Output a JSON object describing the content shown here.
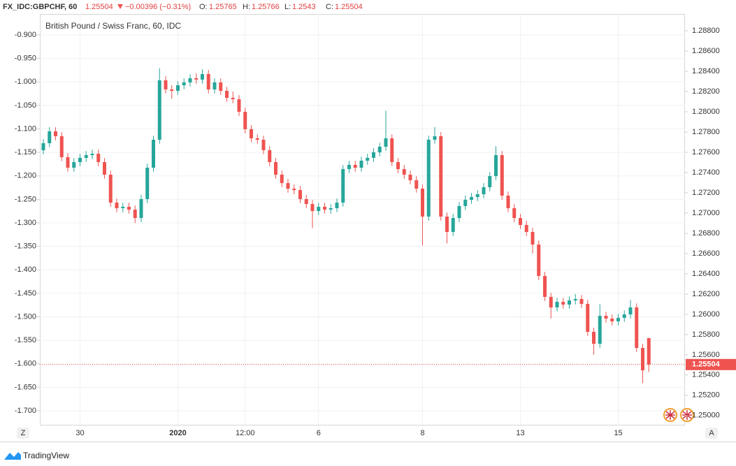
{
  "header": {
    "symbol": "FX_IDC:GBPCHF, 60",
    "change": "−0.00396 (−0.31%)",
    "ohlc_labels": [
      "O:",
      "H:",
      "L:",
      "C:"
    ]
  },
  "footer": {
    "brand": "TradingView",
    "left_button": "Z",
    "right_button": "A"
  },
  "chart_data": {
    "type": "candlestick",
    "title": "British Pound / Swiss Franc, 60, IDC",
    "axis": "y2",
    "up_color": "#26a69a",
    "down_color": "#ef5350",
    "grid": true,
    "categories": [
      null,
      null,
      null,
      null,
      null,
      null,
      "30",
      null,
      null,
      null,
      null,
      null,
      null,
      null,
      null,
      null,
      null,
      null,
      null,
      null,
      null,
      null,
      "2020",
      null,
      null,
      null,
      null,
      null,
      null,
      null,
      null,
      null,
      null,
      "12:00",
      null,
      null,
      null,
      null,
      null,
      null,
      null,
      null,
      null,
      null,
      null,
      "6",
      null,
      null,
      null,
      null,
      null,
      null,
      null,
      null,
      null,
      null,
      null,
      null,
      null,
      null,
      null,
      null,
      "8",
      null,
      null,
      null,
      null,
      null,
      null,
      null,
      null,
      null,
      null,
      null,
      null,
      null,
      null,
      null,
      "13",
      null,
      null,
      null,
      null,
      null,
      null,
      null,
      null,
      null,
      null,
      null,
      null,
      null,
      null,
      null,
      "15",
      null,
      null,
      null,
      null,
      null
    ],
    "open": [
      1.2762,
      1.2769,
      1.27807,
      1.27759,
      1.27552,
      1.27448,
      1.27503,
      1.27545,
      1.27572,
      1.27586,
      1.27503,
      1.27379,
      1.27103,
      1.27048,
      1.27062,
      1.27034,
      1.26951,
      1.27138,
      1.27448,
      1.27724,
      1.28311,
      1.28221,
      1.28207,
      1.28262,
      1.2829,
      1.28331,
      1.28318,
      1.28373,
      1.28221,
      1.2829,
      1.28207,
      1.28138,
      1.28124,
      1.28,
      1.27828,
      1.27738,
      1.27724,
      1.27621,
      1.27503,
      1.27379,
      1.27296,
      1.27241,
      1.27227,
      1.27138,
      1.27089,
      1.2702,
      1.27062,
      1.27034,
      1.27048,
      1.27103,
      1.27434,
      1.27476,
      1.27448,
      1.27517,
      1.27545,
      1.276,
      1.27655,
      1.27738,
      1.27503,
      1.27434,
      1.27379,
      1.27324,
      1.27241,
      1.26965,
      1.27724,
      1.27759,
      1.26965,
      1.26813,
      1.26951,
      1.27069,
      1.27131,
      1.27158,
      1.27186,
      1.27255,
      1.27365,
      1.27572,
      1.27172,
      1.27048,
      1.26951,
      1.26882,
      1.26813,
      1.26689,
      1.26379,
      1.26172,
      1.26068,
      1.26123,
      1.26096,
      1.26137,
      1.26151,
      1.26103,
      1.25827,
      1.25709,
      1.25985,
      1.25958,
      1.2593,
      1.25965,
      1.25999,
      1.26068,
      1.25668,
      1.25765
    ],
    "high": [
      1.2773,
      1.27847,
      1.27847,
      1.27799,
      1.27592,
      1.27543,
      1.27585,
      1.27612,
      1.27626,
      1.27626,
      1.27543,
      1.27419,
      1.27143,
      1.27102,
      1.27102,
      1.27074,
      1.27178,
      1.27488,
      1.27764,
      1.2843,
      1.28351,
      1.28261,
      1.28302,
      1.2833,
      1.28371,
      1.2838,
      1.2842,
      1.28413,
      1.2833,
      1.2833,
      1.28247,
      1.282,
      1.28164,
      1.2804,
      1.27868,
      1.27778,
      1.27764,
      1.27661,
      1.27543,
      1.27419,
      1.27336,
      1.27281,
      1.27267,
      1.27178,
      1.27129,
      1.27102,
      1.27102,
      1.27088,
      1.27143,
      1.27474,
      1.27516,
      1.27516,
      1.27557,
      1.27585,
      1.2764,
      1.27695,
      1.2801,
      1.27778,
      1.27543,
      1.27474,
      1.27419,
      1.27364,
      1.27281,
      1.27764,
      1.2785,
      1.27799,
      1.27005,
      1.26991,
      1.27109,
      1.27171,
      1.27198,
      1.27226,
      1.27295,
      1.27405,
      1.2766,
      1.27612,
      1.27212,
      1.27088,
      1.26991,
      1.26922,
      1.26853,
      1.26729,
      1.26419,
      1.26212,
      1.26163,
      1.26163,
      1.26177,
      1.262,
      1.26191,
      1.26143,
      1.25867,
      1.261,
      1.26025,
      1.25998,
      1.26005,
      1.26039,
      1.2614,
      1.26108,
      1.25708,
      1.25766
    ],
    "low": [
      1.2758,
      1.2765,
      1.27719,
      1.27512,
      1.27408,
      1.27408,
      1.27463,
      1.27505,
      1.27532,
      1.27463,
      1.27339,
      1.27063,
      1.27008,
      1.27008,
      1.26994,
      1.269,
      1.26911,
      1.27098,
      1.27408,
      1.27684,
      1.28181,
      1.2813,
      1.28167,
      1.28222,
      1.2825,
      1.28278,
      1.28278,
      1.28181,
      1.28181,
      1.28167,
      1.28098,
      1.28084,
      1.2796,
      1.27788,
      1.27698,
      1.27684,
      1.27581,
      1.27463,
      1.27339,
      1.27256,
      1.27201,
      1.27187,
      1.27098,
      1.27049,
      1.2685,
      1.2698,
      1.26994,
      1.26994,
      1.27008,
      1.27063,
      1.27394,
      1.27408,
      1.27408,
      1.27477,
      1.27505,
      1.2756,
      1.27615,
      1.27463,
      1.27394,
      1.27339,
      1.27284,
      1.27201,
      1.2668,
      1.26925,
      1.27684,
      1.26925,
      1.267,
      1.26773,
      1.26911,
      1.27029,
      1.27091,
      1.27118,
      1.27146,
      1.27215,
      1.27325,
      1.27132,
      1.27008,
      1.26911,
      1.26842,
      1.26773,
      1.266,
      1.26339,
      1.26132,
      1.2596,
      1.26028,
      1.26056,
      1.26056,
      1.26097,
      1.26063,
      1.25787,
      1.256,
      1.25669,
      1.25918,
      1.2589,
      1.2589,
      1.25925,
      1.25959,
      1.25628,
      1.2532,
      1.2543
    ],
    "close": [
      1.2769,
      1.27807,
      1.27759,
      1.27552,
      1.27448,
      1.27503,
      1.27545,
      1.27572,
      1.27586,
      1.27503,
      1.27379,
      1.27103,
      1.27048,
      1.27062,
      1.27034,
      1.26951,
      1.27138,
      1.27448,
      1.27724,
      1.28311,
      1.28221,
      1.28207,
      1.28262,
      1.2829,
      1.28331,
      1.28318,
      1.28373,
      1.28221,
      1.2829,
      1.28207,
      1.28138,
      1.28124,
      1.28,
      1.27828,
      1.27738,
      1.27724,
      1.27621,
      1.27503,
      1.27379,
      1.27296,
      1.27241,
      1.27227,
      1.27138,
      1.27089,
      1.2702,
      1.27062,
      1.27034,
      1.27048,
      1.27103,
      1.27434,
      1.27476,
      1.27448,
      1.27517,
      1.27545,
      1.276,
      1.27655,
      1.27738,
      1.27503,
      1.27434,
      1.27379,
      1.27324,
      1.27241,
      1.26965,
      1.27724,
      1.27759,
      1.26965,
      1.26813,
      1.26951,
      1.27069,
      1.27131,
      1.27158,
      1.27186,
      1.27255,
      1.27365,
      1.27572,
      1.27172,
      1.27048,
      1.26951,
      1.26882,
      1.26813,
      1.26689,
      1.26379,
      1.26172,
      1.26068,
      1.26123,
      1.26096,
      1.26137,
      1.26151,
      1.26103,
      1.25827,
      1.25709,
      1.25985,
      1.25958,
      1.2593,
      1.25965,
      1.25999,
      1.26068,
      1.25668,
      1.25447,
      1.25504
    ],
    "ylim": [
      -1.7297,
      -0.8554
    ],
    "yticks": [
      {
        "value": -0.9,
        "label": "-0.900"
      },
      {
        "value": -0.95,
        "label": "-0.950"
      },
      {
        "value": -1.0,
        "label": "-1.000"
      },
      {
        "value": -1.05,
        "label": "-1.050"
      },
      {
        "value": -1.1,
        "label": "-1.100"
      },
      {
        "value": -1.15,
        "label": "-1.150"
      },
      {
        "value": -1.2,
        "label": "-1.200"
      },
      {
        "value": -1.25,
        "label": "-1.250"
      },
      {
        "value": -1.3,
        "label": "-1.300"
      },
      {
        "value": -1.35,
        "label": "-1.350"
      },
      {
        "value": -1.4,
        "label": "-1.400"
      },
      {
        "value": -1.45,
        "label": "-1.450"
      },
      {
        "value": -1.5,
        "label": "-1.500"
      },
      {
        "value": -1.55,
        "label": "-1.550"
      },
      {
        "value": -1.6,
        "label": "-1.600"
      },
      {
        "value": -1.65,
        "label": "-1.650"
      },
      {
        "value": -1.7,
        "label": "-1.700"
      }
    ],
    "y2lim": [
      1.24909,
      1.28966
    ],
    "y2ticks": [
      {
        "value": 1.288,
        "label": "1.28800"
      },
      {
        "value": 1.286,
        "label": "1.28600"
      },
      {
        "value": 1.284,
        "label": "1.28400"
      },
      {
        "value": 1.282,
        "label": "1.28200"
      },
      {
        "value": 1.28,
        "label": "1.28000"
      },
      {
        "value": 1.278,
        "label": "1.27800"
      },
      {
        "value": 1.276,
        "label": "1.27600"
      },
      {
        "value": 1.274,
        "label": "1.27400"
      },
      {
        "value": 1.272,
        "label": "1.27200"
      },
      {
        "value": 1.27,
        "label": "1.27000"
      },
      {
        "value": 1.268,
        "label": "1.26800"
      },
      {
        "value": 1.266,
        "label": "1.26600"
      },
      {
        "value": 1.264,
        "label": "1.26400"
      },
      {
        "value": 1.262,
        "label": "1.26200"
      },
      {
        "value": 1.26,
        "label": "1.26000"
      },
      {
        "value": 1.258,
        "label": "1.25800"
      },
      {
        "value": 1.256,
        "label": "1.25600"
      },
      {
        "value": 1.254,
        "label": "1.25400"
      },
      {
        "value": 1.252,
        "label": "1.25200"
      },
      {
        "value": 1.25,
        "label": "1.25000"
      }
    ]
  }
}
